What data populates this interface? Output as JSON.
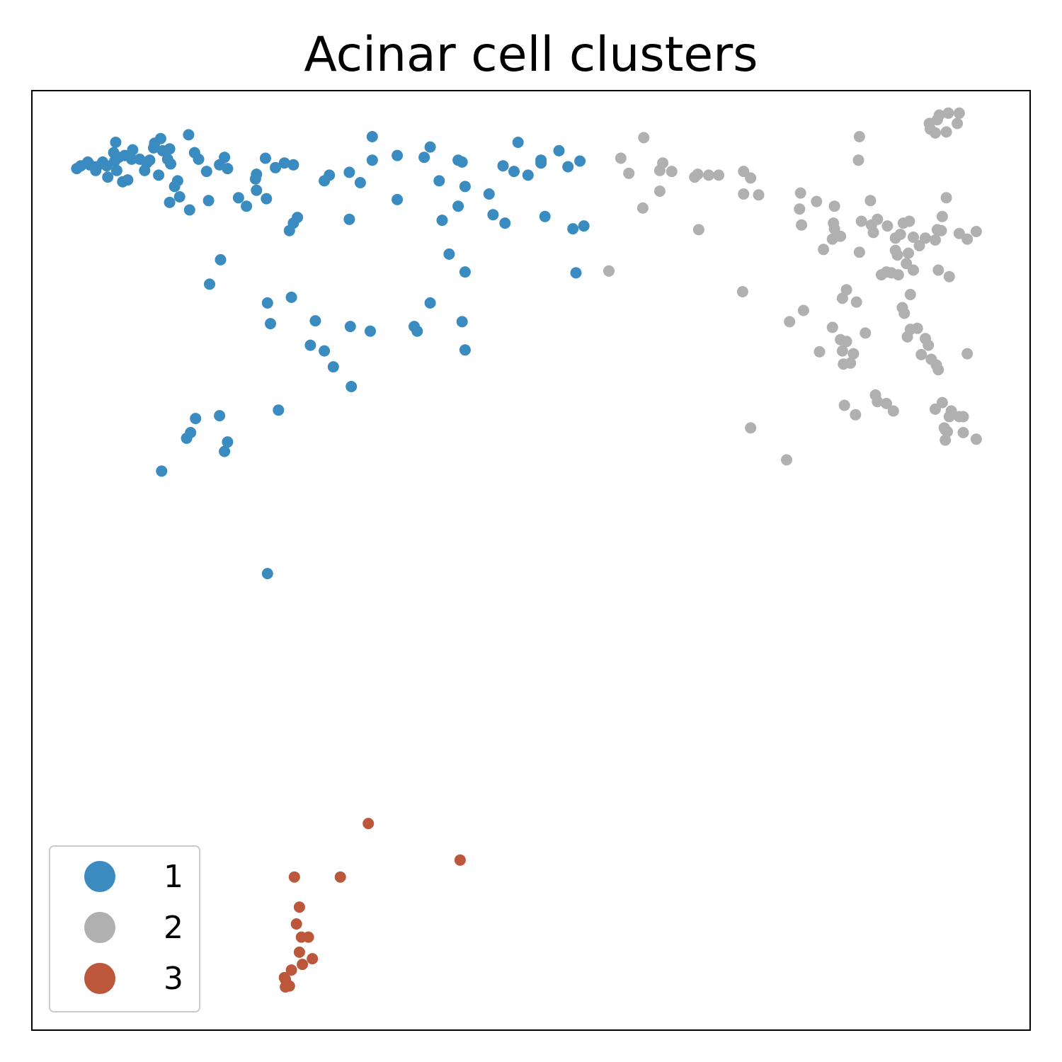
{
  "chart_data": {
    "type": "scatter",
    "title": "Acinar cell clusters",
    "xlabel": "",
    "ylabel": "",
    "xlim": [
      0,
      100
    ],
    "ylim": [
      0,
      100
    ],
    "axes_ticks": false,
    "grid": false,
    "legend": {
      "placement": "lower-left"
    },
    "series": [
      {
        "name": "1",
        "color": "#3a8bbf",
        "points": [
          [
            4.5,
            91.7
          ],
          [
            4.9,
            92.0
          ],
          [
            5.8,
            92.1
          ],
          [
            5.6,
            92.4
          ],
          [
            6.4,
            91.5
          ],
          [
            6.5,
            91.9
          ],
          [
            7.1,
            92.4
          ],
          [
            7.5,
            92.0
          ],
          [
            7.6,
            90.8
          ],
          [
            8.3,
            92.5
          ],
          [
            8.2,
            93.4
          ],
          [
            8.4,
            94.5
          ],
          [
            8.5,
            91.5
          ],
          [
            8.7,
            92.9
          ],
          [
            9.1,
            90.3
          ],
          [
            9.3,
            93.1
          ],
          [
            9.6,
            90.5
          ],
          [
            10.0,
            92.7
          ],
          [
            10.1,
            93.7
          ],
          [
            10.8,
            92.7
          ],
          [
            11.3,
            91.5
          ],
          [
            11.5,
            92.3
          ],
          [
            11.8,
            92.6
          ],
          [
            12.2,
            93.9
          ],
          [
            12.3,
            94.4
          ],
          [
            12.7,
            91.0
          ],
          [
            12.9,
            94.9
          ],
          [
            13.1,
            93.6
          ],
          [
            13.8,
            93.8
          ],
          [
            13.6,
            92.7
          ],
          [
            13.9,
            92.2
          ],
          [
            13.8,
            88.1
          ],
          [
            14.3,
            89.8
          ],
          [
            14.6,
            90.4
          ],
          [
            14.8,
            88.7
          ],
          [
            15.7,
            95.3
          ],
          [
            16.3,
            93.4
          ],
          [
            16.7,
            92.7
          ],
          [
            17.5,
            91.4
          ],
          [
            17.7,
            88.3
          ],
          [
            18.8,
            92.1
          ],
          [
            19.3,
            92.9
          ],
          [
            19.6,
            91.7
          ],
          [
            20.7,
            88.6
          ],
          [
            21.5,
            87.7
          ],
          [
            22.5,
            91.1
          ],
          [
            22.4,
            90.6
          ],
          [
            22.5,
            89.4
          ],
          [
            23.4,
            92.8
          ],
          [
            23.5,
            88.5
          ],
          [
            24.4,
            91.8
          ],
          [
            25.3,
            92.3
          ],
          [
            26.2,
            92.1
          ],
          [
            25.8,
            85.1
          ],
          [
            26.2,
            85.9
          ],
          [
            26.6,
            86.5
          ],
          [
            29.8,
            91.0
          ],
          [
            29.3,
            90.4
          ],
          [
            31.8,
            91.3
          ],
          [
            32.9,
            90.2
          ],
          [
            34.1,
            95.1
          ],
          [
            34.1,
            92.6
          ],
          [
            36.6,
            93.1
          ],
          [
            36.6,
            88.4
          ],
          [
            39.3,
            92.9
          ],
          [
            39.9,
            94.0
          ],
          [
            40.8,
            90.4
          ],
          [
            42.7,
            92.6
          ],
          [
            43.1,
            92.4
          ],
          [
            43.4,
            89.8
          ],
          [
            42.7,
            87.7
          ],
          [
            41.1,
            86.2
          ],
          [
            45.8,
            89.0
          ],
          [
            46.2,
            86.8
          ],
          [
            47.4,
            85.9
          ],
          [
            47.2,
            92.0
          ],
          [
            48.7,
            94.5
          ],
          [
            48.3,
            91.4
          ],
          [
            51.0,
            92.6
          ],
          [
            51.0,
            92.3
          ],
          [
            49.7,
            91.0
          ],
          [
            51.4,
            86.6
          ],
          [
            52.8,
            93.6
          ],
          [
            53.7,
            91.9
          ],
          [
            54.9,
            92.5
          ],
          [
            54.2,
            85.3
          ],
          [
            55.3,
            85.6
          ],
          [
            15.8,
            87.3
          ],
          [
            18.9,
            82.0
          ],
          [
            17.8,
            79.4
          ],
          [
            31.8,
            86.3
          ],
          [
            23.6,
            77.4
          ],
          [
            26.0,
            78.0
          ],
          [
            23.9,
            75.2
          ],
          [
            28.4,
            75.5
          ],
          [
            31.9,
            74.9
          ],
          [
            27.9,
            72.9
          ],
          [
            29.3,
            72.3
          ],
          [
            30.2,
            70.6
          ],
          [
            41.8,
            82.6
          ],
          [
            43.4,
            80.7
          ],
          [
            54.5,
            80.6
          ],
          [
            39.9,
            77.4
          ],
          [
            38.3,
            74.9
          ],
          [
            38.6,
            74.4
          ],
          [
            33.9,
            74.4
          ],
          [
            43.1,
            75.4
          ],
          [
            43.4,
            72.4
          ],
          [
            32.0,
            68.5
          ],
          [
            24.7,
            66.0
          ],
          [
            16.4,
            65.1
          ],
          [
            18.8,
            65.4
          ],
          [
            15.9,
            63.6
          ],
          [
            15.5,
            63.0
          ],
          [
            19.6,
            62.6
          ],
          [
            19.3,
            61.6
          ],
          [
            13.0,
            59.5
          ],
          [
            23.6,
            48.6
          ]
        ]
      },
      {
        "name": "2",
        "color": "#b0b0b0",
        "points": [
          [
            59.0,
            92.8
          ],
          [
            61.3,
            95.0
          ],
          [
            59.8,
            91.2
          ],
          [
            62.9,
            91.5
          ],
          [
            63.2,
            92.3
          ],
          [
            64.1,
            91.4
          ],
          [
            62.9,
            89.3
          ],
          [
            61.2,
            87.5
          ],
          [
            66.4,
            90.8
          ],
          [
            66.7,
            91.1
          ],
          [
            67.8,
            91.0
          ],
          [
            68.8,
            91.0
          ],
          [
            71.3,
            91.4
          ],
          [
            72.0,
            90.7
          ],
          [
            71.3,
            89.0
          ],
          [
            72.8,
            88.9
          ],
          [
            66.8,
            85.2
          ],
          [
            57.8,
            80.8
          ],
          [
            71.2,
            78.6
          ],
          [
            82.9,
            95.1
          ],
          [
            82.8,
            92.6
          ],
          [
            90.9,
            97.4
          ],
          [
            91.8,
            97.6
          ],
          [
            92.9,
            97.6
          ],
          [
            89.9,
            96.5
          ],
          [
            90.7,
            96.9
          ],
          [
            90.0,
            95.9
          ],
          [
            90.5,
            95.5
          ],
          [
            91.6,
            95.6
          ],
          [
            92.7,
            96.5
          ],
          [
            77.0,
            89.1
          ],
          [
            78.6,
            88.2
          ],
          [
            80.4,
            87.7
          ],
          [
            80.3,
            85.9
          ],
          [
            84.0,
            88.3
          ],
          [
            83.1,
            86.1
          ],
          [
            76.9,
            87.4
          ],
          [
            77.1,
            85.7
          ],
          [
            79.3,
            83.1
          ],
          [
            80.2,
            84.2
          ],
          [
            80.4,
            85.3
          ],
          [
            81.0,
            84.5
          ],
          [
            82.9,
            82.8
          ],
          [
            84.3,
            84.9
          ],
          [
            84.1,
            85.7
          ],
          [
            84.7,
            86.3
          ],
          [
            85.7,
            85.6
          ],
          [
            86.5,
            84.3
          ],
          [
            86.5,
            83.0
          ],
          [
            87.0,
            84.7
          ],
          [
            87.3,
            85.9
          ],
          [
            87.9,
            86.1
          ],
          [
            88.3,
            84.4
          ],
          [
            88.9,
            83.5
          ],
          [
            89.5,
            84.3
          ],
          [
            90.7,
            85.2
          ],
          [
            90.5,
            84.1
          ],
          [
            91.1,
            85.1
          ],
          [
            91.2,
            86.6
          ],
          [
            91.6,
            88.6
          ],
          [
            92.9,
            84.8
          ],
          [
            93.7,
            84.2
          ],
          [
            94.6,
            85.0
          ],
          [
            86.7,
            82.5
          ],
          [
            87.8,
            82.7
          ],
          [
            87.6,
            81.6
          ],
          [
            85.1,
            80.4
          ],
          [
            85.6,
            80.7
          ],
          [
            86.1,
            80.6
          ],
          [
            86.8,
            80.4
          ],
          [
            88.3,
            80.9
          ],
          [
            90.8,
            80.9
          ],
          [
            91.9,
            80.2
          ],
          [
            81.6,
            78.8
          ],
          [
            81.2,
            77.9
          ],
          [
            82.6,
            77.5
          ],
          [
            88.0,
            78.3
          ],
          [
            87.2,
            76.9
          ],
          [
            87.4,
            76.3
          ],
          [
            88.0,
            74.6
          ],
          [
            88.7,
            74.7
          ],
          [
            87.7,
            73.8
          ],
          [
            77.3,
            76.6
          ],
          [
            75.9,
            75.4
          ],
          [
            80.2,
            74.8
          ],
          [
            81.0,
            73.5
          ],
          [
            81.6,
            73.3
          ],
          [
            83.5,
            74.2
          ],
          [
            81.2,
            72.3
          ],
          [
            82.3,
            72.0
          ],
          [
            82.0,
            71.0
          ],
          [
            81.3,
            70.9
          ],
          [
            78.9,
            72.2
          ],
          [
            89.8,
            72.9
          ],
          [
            89.5,
            73.6
          ],
          [
            89.1,
            71.9
          ],
          [
            90.1,
            71.4
          ],
          [
            90.8,
            70.3
          ],
          [
            90.6,
            70.8
          ],
          [
            93.7,
            72.0
          ],
          [
            84.5,
            67.6
          ],
          [
            84.7,
            66.9
          ],
          [
            85.6,
            66.7
          ],
          [
            86.3,
            65.9
          ],
          [
            81.4,
            66.5
          ],
          [
            82.5,
            65.5
          ],
          [
            90.5,
            66.1
          ],
          [
            91.2,
            66.8
          ],
          [
            92.1,
            65.9
          ],
          [
            91.9,
            65.3
          ],
          [
            92.9,
            65.3
          ],
          [
            93.3,
            65.3
          ],
          [
            91.4,
            64.1
          ],
          [
            91.5,
            63.9
          ],
          [
            93.3,
            63.6
          ],
          [
            94.6,
            62.9
          ],
          [
            91.7,
            63.7
          ],
          [
            91.5,
            62.8
          ],
          [
            72.0,
            64.1
          ],
          [
            75.6,
            60.7
          ]
        ]
      },
      {
        "name": "3",
        "color": "#bd573c",
        "points": [
          [
            33.7,
            22.0
          ],
          [
            42.9,
            18.1
          ],
          [
            26.3,
            16.3
          ],
          [
            30.9,
            16.3
          ],
          [
            26.8,
            13.1
          ],
          [
            26.5,
            11.3
          ],
          [
            27.0,
            9.9
          ],
          [
            27.7,
            9.9
          ],
          [
            26.8,
            8.3
          ],
          [
            28.1,
            7.6
          ],
          [
            27.1,
            7.0
          ],
          [
            26.0,
            6.4
          ],
          [
            25.3,
            5.6
          ],
          [
            25.4,
            5.4
          ],
          [
            25.8,
            4.7
          ],
          [
            25.4,
            4.6
          ]
        ]
      }
    ]
  }
}
